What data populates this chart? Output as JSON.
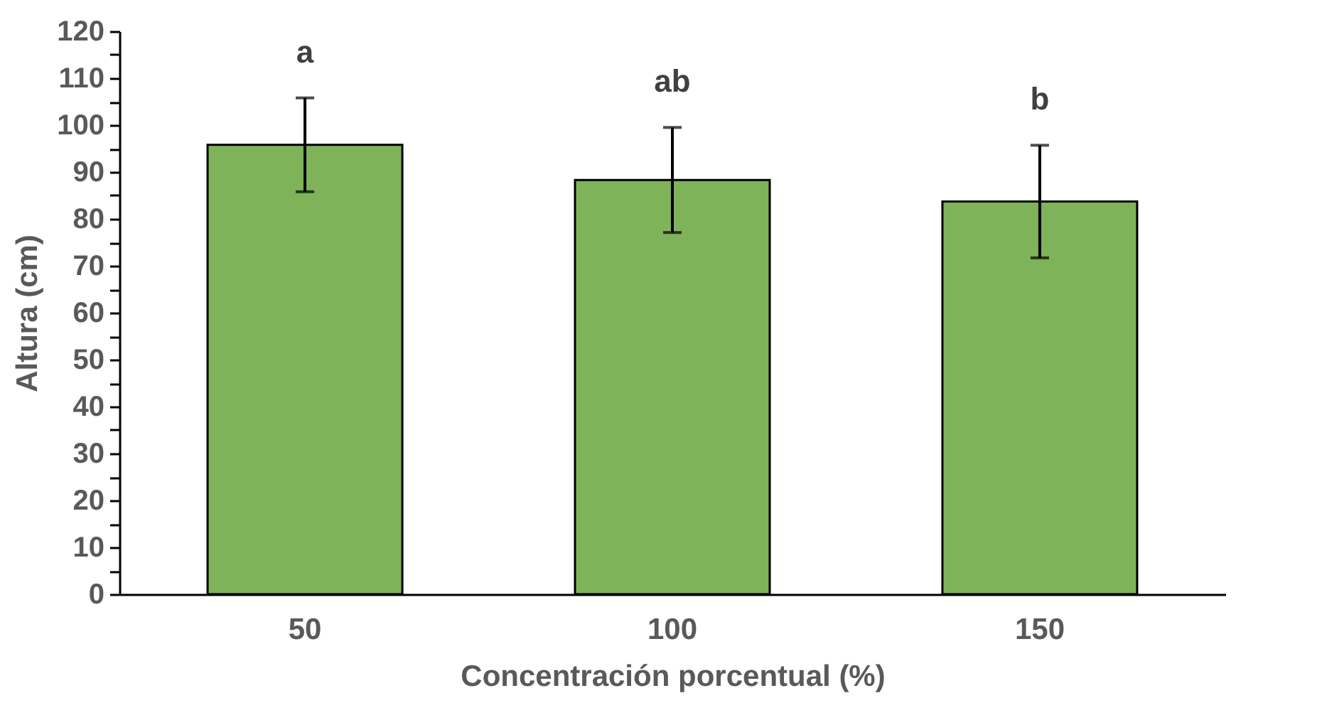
{
  "chart_data": {
    "type": "bar",
    "xlabel": "Concentración porcentual (%)",
    "ylabel": "Altura (cm)",
    "categories": [
      "50",
      "100",
      "150"
    ],
    "values": [
      95.8,
      88.3,
      83.7
    ],
    "errors": [
      10,
      11.2,
      12
    ],
    "color": "#7fb35a",
    "ylim": [
      0,
      120
    ],
    "yticks": [
      0,
      {
        "value": 5,
        "label": null
      },
      10,
      {
        "value": 15,
        "label": null
      },
      20,
      {
        "value": 25,
        "label": null
      },
      30,
      {
        "value": 35,
        "label": null
      },
      40,
      {
        "value": 45,
        "label": null
      },
      50,
      {
        "value": 55,
        "label": null
      },
      60,
      {
        "value": 65,
        "label": null
      },
      70,
      {
        "value": 75,
        "label": null
      },
      80,
      {
        "value": 85,
        "label": null
      },
      90,
      {
        "value": 95,
        "label": null
      },
      100,
      {
        "value": 105,
        "label": null
      },
      110,
      {
        "value": 115,
        "label": null
      },
      120
    ],
    "grid": false,
    "annotations": [
      {
        "text": "a",
        "x": "50",
        "y": 105.8
      },
      {
        "text": "ab",
        "x": "100",
        "y": 99.5
      },
      {
        "text": "b",
        "x": "150",
        "y": 95.7
      }
    ]
  }
}
